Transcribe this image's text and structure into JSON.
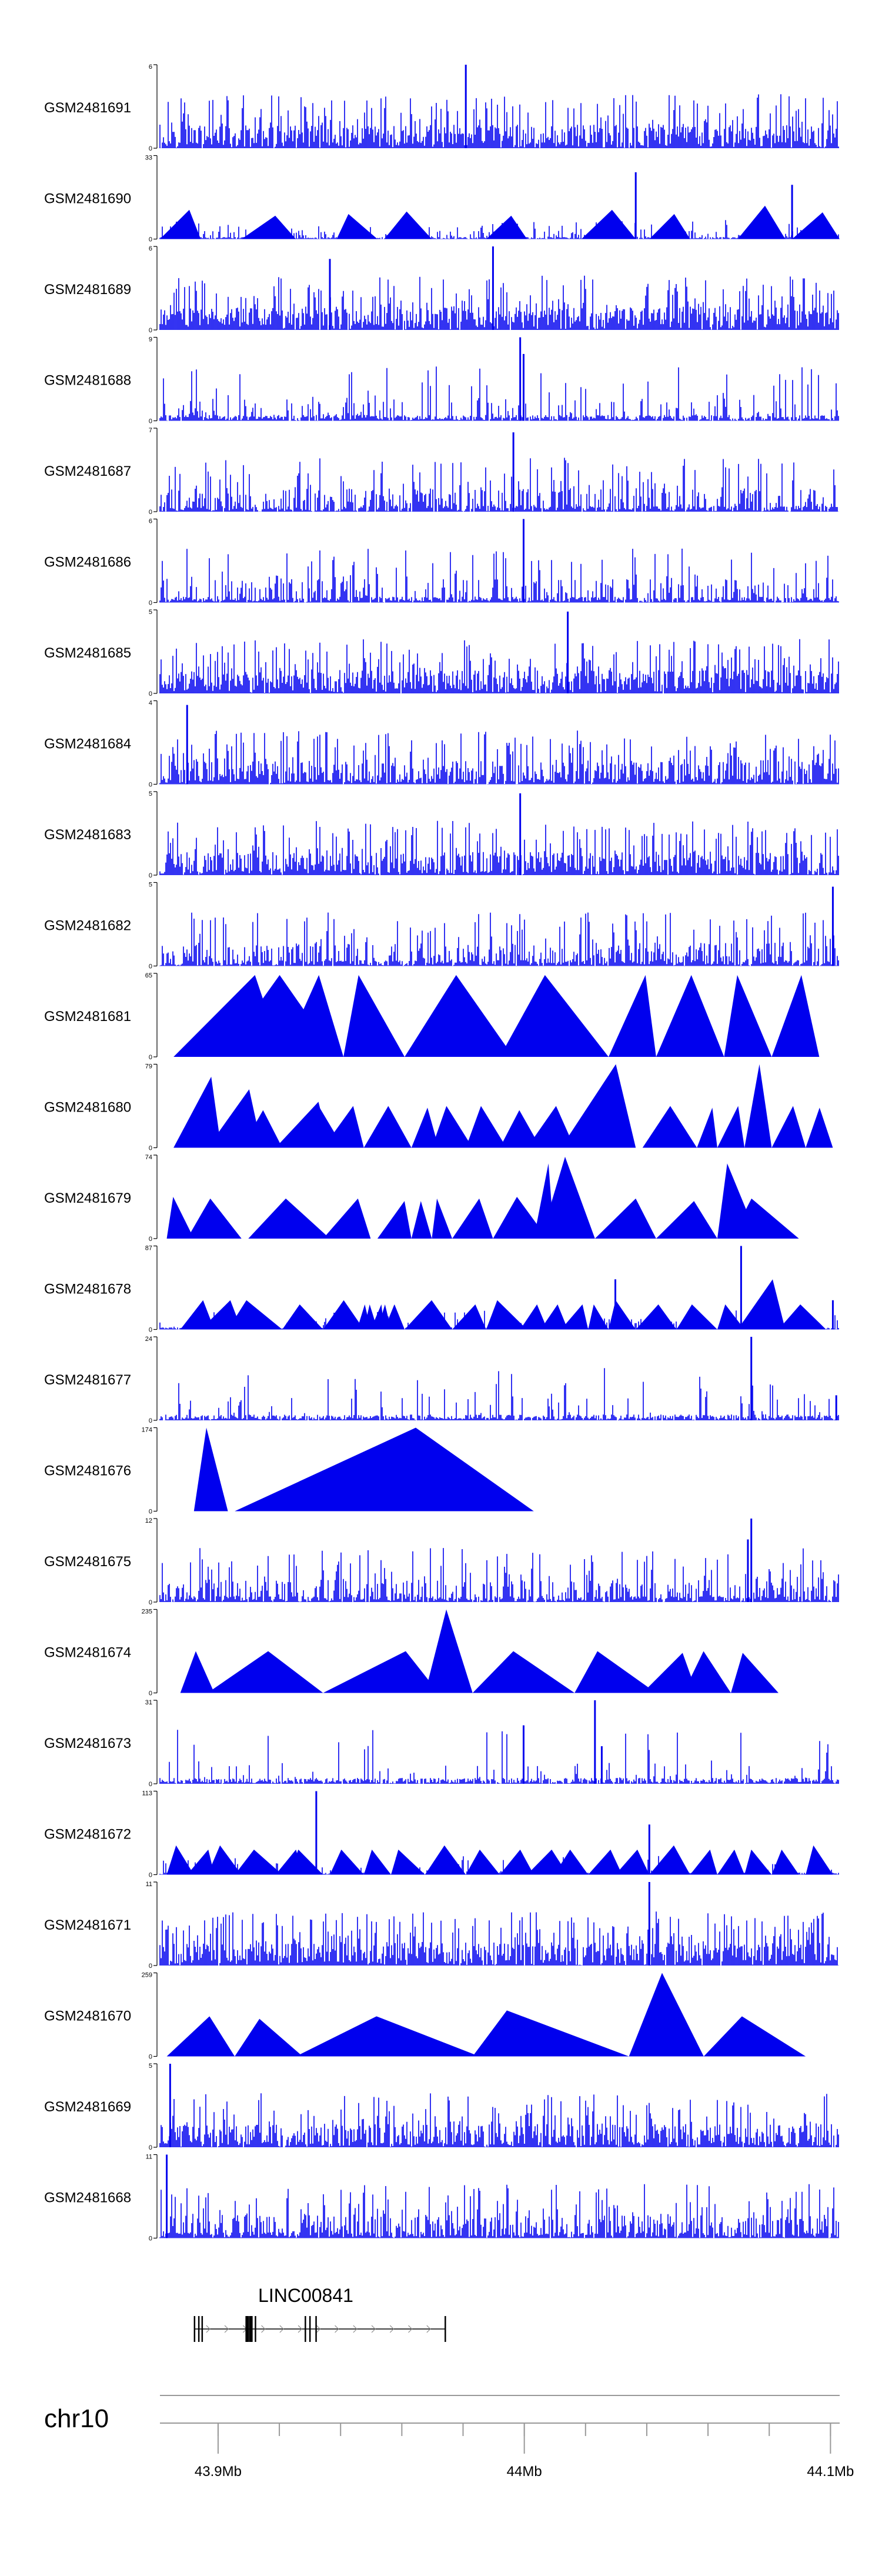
{
  "chart_data": {
    "type": "genome-track-plot",
    "colors": {
      "signal": "#0000ee",
      "axis": "#000000",
      "gene": "#000000",
      "chrom_line": "#999999"
    },
    "tracks": [
      {
        "name": "GSM2481691",
        "ymax_label": "6",
        "ymin_label": "0",
        "style": "spiky",
        "seed": 11,
        "dense": 0.75,
        "peaks": [
          [
            0.45,
            1.0
          ]
        ]
      },
      {
        "name": "GSM2481690",
        "ymax_label": "33",
        "ymin_label": "0",
        "style": "mixed",
        "seed": 12,
        "triangles": [
          [
            0.0,
            0.06,
            0.35
          ],
          [
            0.12,
            0.2,
            0.28
          ],
          [
            0.26,
            0.32,
            0.3
          ],
          [
            0.33,
            0.4,
            0.33
          ],
          [
            0.48,
            0.54,
            0.28
          ],
          [
            0.62,
            0.7,
            0.35
          ],
          [
            0.72,
            0.78,
            0.3
          ],
          [
            0.85,
            0.92,
            0.4
          ],
          [
            0.93,
            1.0,
            0.32
          ]
        ],
        "peaks": [
          [
            0.7,
            0.8
          ],
          [
            0.93,
            0.65
          ]
        ]
      },
      {
        "name": "GSM2481689",
        "ymax_label": "6",
        "ymin_label": "0",
        "style": "spiky",
        "seed": 13,
        "dense": 0.8,
        "peaks": [
          [
            0.49,
            1.0
          ],
          [
            0.25,
            0.85
          ]
        ]
      },
      {
        "name": "GSM2481688",
        "ymax_label": "9",
        "ymin_label": "0",
        "style": "spiky",
        "seed": 14,
        "dense": 0.25,
        "peaks": [
          [
            0.53,
            1.0
          ],
          [
            0.535,
            0.8
          ]
        ]
      },
      {
        "name": "GSM2481687",
        "ymax_label": "7",
        "ymin_label": "0",
        "style": "spiky",
        "seed": 15,
        "dense": 0.45,
        "peaks": [
          [
            0.52,
            0.95
          ]
        ]
      },
      {
        "name": "GSM2481686",
        "ymax_label": "6",
        "ymin_label": "0",
        "style": "spiky",
        "seed": 16,
        "dense": 0.35,
        "peaks": [
          [
            0.535,
            1.0
          ]
        ]
      },
      {
        "name": "GSM2481685",
        "ymax_label": "5",
        "ymin_label": "0",
        "style": "spiky",
        "seed": 17,
        "dense": 0.8,
        "peaks": [
          [
            0.6,
            0.98
          ]
        ]
      },
      {
        "name": "GSM2481684",
        "ymax_label": "4",
        "ymin_label": "0",
        "style": "spiky",
        "seed": 18,
        "dense": 0.65,
        "peaks": [
          [
            0.04,
            0.95
          ]
        ]
      },
      {
        "name": "GSM2481683",
        "ymax_label": "5",
        "ymin_label": "0",
        "style": "spiky",
        "seed": 19,
        "dense": 0.7,
        "peaks": [
          [
            0.53,
            0.98
          ]
        ]
      },
      {
        "name": "GSM2481682",
        "ymax_label": "5",
        "ymin_label": "0",
        "style": "spiky",
        "seed": 20,
        "dense": 0.5,
        "peaks": [
          [
            0.99,
            0.95
          ]
        ]
      },
      {
        "name": "GSM2481681",
        "ymax_label": "65",
        "ymin_label": "0",
        "style": "triangles",
        "seed": 21,
        "triangles": [
          [
            0.02,
            0.18,
            0.98
          ],
          [
            0.09,
            0.26,
            0.98
          ],
          [
            0.18,
            0.27,
            0.98
          ],
          [
            0.27,
            0.36,
            0.98
          ],
          [
            0.36,
            0.52,
            0.98
          ],
          [
            0.5,
            0.66,
            0.98
          ],
          [
            0.66,
            0.73,
            0.98
          ],
          [
            0.73,
            0.83,
            0.98
          ],
          [
            0.83,
            0.9,
            0.98
          ],
          [
            0.9,
            0.97,
            0.98
          ]
        ]
      },
      {
        "name": "GSM2481680",
        "ymax_label": "79",
        "ymin_label": "0",
        "style": "triangles",
        "seed": 22,
        "triangles": [
          [
            0.02,
            0.09,
            0.85
          ],
          [
            0.07,
            0.15,
            0.7
          ],
          [
            0.12,
            0.18,
            0.45
          ],
          [
            0.17,
            0.25,
            0.55
          ],
          [
            0.17,
            0.27,
            0.5
          ],
          [
            0.24,
            0.3,
            0.5
          ],
          [
            0.3,
            0.37,
            0.5
          ],
          [
            0.37,
            0.41,
            0.48
          ],
          [
            0.4,
            0.46,
            0.5
          ],
          [
            0.45,
            0.51,
            0.5
          ],
          [
            0.5,
            0.56,
            0.45
          ],
          [
            0.54,
            0.61,
            0.5
          ],
          [
            0.59,
            0.7,
            1.0
          ],
          [
            0.71,
            0.79,
            0.5
          ],
          [
            0.79,
            0.82,
            0.48
          ],
          [
            0.82,
            0.86,
            0.5
          ],
          [
            0.86,
            0.9,
            1.0
          ],
          [
            0.9,
            0.95,
            0.5
          ],
          [
            0.95,
            0.99,
            0.48
          ]
        ]
      },
      {
        "name": "GSM2481679",
        "ymax_label": "74",
        "ymin_label": "0",
        "style": "triangles",
        "seed": 23,
        "triangles": [
          [
            0.01,
            0.05,
            0.5
          ],
          [
            0.04,
            0.12,
            0.48
          ],
          [
            0.13,
            0.25,
            0.48
          ],
          [
            0.24,
            0.31,
            0.48
          ],
          [
            0.32,
            0.37,
            0.45
          ],
          [
            0.37,
            0.4,
            0.45
          ],
          [
            0.4,
            0.43,
            0.48
          ],
          [
            0.43,
            0.49,
            0.48
          ],
          [
            0.49,
            0.57,
            0.5
          ],
          [
            0.55,
            0.58,
            0.9
          ],
          [
            0.56,
            0.64,
            0.98
          ],
          [
            0.64,
            0.73,
            0.48
          ],
          [
            0.73,
            0.82,
            0.45
          ],
          [
            0.82,
            0.88,
            0.9
          ],
          [
            0.84,
            0.94,
            0.48
          ]
        ]
      },
      {
        "name": "GSM2481678",
        "ymax_label": "87",
        "ymin_label": "0",
        "style": "mixed",
        "seed": 24,
        "triangles": [
          [
            0.03,
            0.08,
            0.35
          ],
          [
            0.06,
            0.12,
            0.35
          ],
          [
            0.1,
            0.18,
            0.35
          ],
          [
            0.18,
            0.24,
            0.3
          ],
          [
            0.24,
            0.3,
            0.35
          ],
          [
            0.29,
            0.31,
            0.3
          ],
          [
            0.3,
            0.32,
            0.3
          ],
          [
            0.31,
            0.33,
            0.3
          ],
          [
            0.32,
            0.34,
            0.3
          ],
          [
            0.33,
            0.35,
            0.3
          ],
          [
            0.34,
            0.36,
            0.3
          ],
          [
            0.36,
            0.43,
            0.35
          ],
          [
            0.43,
            0.48,
            0.3
          ],
          [
            0.48,
            0.54,
            0.35
          ],
          [
            0.53,
            0.57,
            0.3
          ],
          [
            0.56,
            0.6,
            0.3
          ],
          [
            0.59,
            0.63,
            0.3
          ],
          [
            0.63,
            0.66,
            0.3
          ],
          [
            0.66,
            0.7,
            0.35
          ],
          [
            0.7,
            0.76,
            0.3
          ],
          [
            0.76,
            0.82,
            0.3
          ],
          [
            0.82,
            0.86,
            0.3
          ],
          [
            0.85,
            0.92,
            0.6
          ],
          [
            0.91,
            0.98,
            0.3
          ]
        ],
        "peaks": [
          [
            0.855,
            1.0
          ],
          [
            0.99,
            0.35
          ],
          [
            0.67,
            0.6
          ]
        ]
      },
      {
        "name": "GSM2481677",
        "ymax_label": "24",
        "ymin_label": "0",
        "style": "spiky",
        "seed": 25,
        "dense": 0.12,
        "peaks": [
          [
            0.87,
            1.0
          ],
          [
            0.995,
            0.3
          ]
        ]
      },
      {
        "name": "GSM2481676",
        "ymax_label": "174",
        "ymin_label": "0",
        "style": "triangles",
        "seed": 26,
        "triangles": [
          [
            0.05,
            0.1,
            1.0
          ],
          [
            0.11,
            0.55,
            1.0
          ]
        ]
      },
      {
        "name": "GSM2481675",
        "ymax_label": "12",
        "ymin_label": "0",
        "style": "spiky",
        "seed": 27,
        "dense": 0.45,
        "peaks": [
          [
            0.87,
            1.0
          ],
          [
            0.865,
            0.75
          ]
        ]
      },
      {
        "name": "GSM2481674",
        "ymax_label": "235",
        "ymin_label": "0",
        "style": "triangles",
        "seed": 28,
        "triangles": [
          [
            0.03,
            0.08,
            0.5
          ],
          [
            0.07,
            0.24,
            0.5
          ],
          [
            0.24,
            0.41,
            0.5
          ],
          [
            0.39,
            0.46,
            1.0
          ],
          [
            0.46,
            0.61,
            0.5
          ],
          [
            0.61,
            0.73,
            0.5
          ],
          [
            0.71,
            0.79,
            0.48
          ],
          [
            0.77,
            0.84,
            0.5
          ],
          [
            0.84,
            0.91,
            0.48
          ]
        ]
      },
      {
        "name": "GSM2481673",
        "ymax_label": "31",
        "ymin_label": "0",
        "style": "spiky",
        "seed": 29,
        "dense": 0.12,
        "peaks": [
          [
            0.535,
            0.7
          ],
          [
            0.64,
            1.0
          ],
          [
            0.65,
            0.45
          ]
        ]
      },
      {
        "name": "GSM2481672",
        "ymax_label": "113",
        "ymin_label": "0",
        "style": "mixed",
        "seed": 30,
        "triangles": [
          [
            0.01,
            0.05,
            0.35
          ],
          [
            0.04,
            0.08,
            0.3
          ],
          [
            0.07,
            0.12,
            0.35
          ],
          [
            0.11,
            0.18,
            0.3
          ],
          [
            0.17,
            0.21,
            0.3
          ],
          [
            0.19,
            0.24,
            0.3
          ],
          [
            0.25,
            0.3,
            0.3
          ],
          [
            0.3,
            0.34,
            0.3
          ],
          [
            0.34,
            0.39,
            0.3
          ],
          [
            0.39,
            0.45,
            0.35
          ],
          [
            0.45,
            0.5,
            0.3
          ],
          [
            0.5,
            0.55,
            0.3
          ],
          [
            0.54,
            0.6,
            0.3
          ],
          [
            0.58,
            0.63,
            0.3
          ],
          [
            0.63,
            0.68,
            0.3
          ],
          [
            0.67,
            0.72,
            0.3
          ],
          [
            0.72,
            0.78,
            0.35
          ],
          [
            0.78,
            0.82,
            0.3
          ],
          [
            0.82,
            0.86,
            0.3
          ],
          [
            0.86,
            0.9,
            0.3
          ],
          [
            0.9,
            0.94,
            0.3
          ],
          [
            0.95,
            0.99,
            0.35
          ]
        ],
        "peaks": [
          [
            0.23,
            1.0
          ],
          [
            0.72,
            0.6
          ]
        ]
      },
      {
        "name": "GSM2481671",
        "ymax_label": "11",
        "ymin_label": "0",
        "style": "spiky",
        "seed": 31,
        "dense": 0.8,
        "peaks": [
          [
            0.72,
            1.0
          ]
        ]
      },
      {
        "name": "GSM2481670",
        "ymax_label": "259",
        "ymin_label": "0",
        "style": "triangles",
        "seed": 32,
        "triangles": [
          [
            0.01,
            0.11,
            0.48
          ],
          [
            0.11,
            0.21,
            0.45
          ],
          [
            0.2,
            0.47,
            0.48
          ],
          [
            0.46,
            0.69,
            0.55
          ],
          [
            0.69,
            0.8,
            1.0
          ],
          [
            0.8,
            0.95,
            0.48
          ]
        ]
      },
      {
        "name": "GSM2481669",
        "ymax_label": "5",
        "ymin_label": "0",
        "style": "spiky",
        "seed": 33,
        "dense": 0.7,
        "peaks": [
          [
            0.015,
            1.0
          ]
        ]
      },
      {
        "name": "GSM2481668",
        "ymax_label": "11",
        "ymin_label": "0",
        "style": "spiky",
        "seed": 34,
        "dense": 0.6,
        "peaks": [
          [
            0.01,
            1.0
          ]
        ]
      }
    ],
    "gene": {
      "name": "LINC00841",
      "start_mb": 43.8923,
      "end_mb": 43.9742,
      "exons_mb": [
        43.8923,
        43.8937,
        43.8948,
        43.9095,
        43.9107,
        43.9122,
        43.9285,
        43.93,
        43.932,
        43.9742
      ]
    },
    "axis": {
      "chromosome": "chr10",
      "range_mb": [
        43.881,
        44.103
      ],
      "minor_tick_mb": 0.02,
      "major_ticks": [
        {
          "pos_mb": 43.9,
          "label": "43.9Mb"
        },
        {
          "pos_mb": 44.0,
          "label": "44Mb"
        },
        {
          "pos_mb": 44.1,
          "label": "44.1Mb"
        }
      ]
    }
  }
}
